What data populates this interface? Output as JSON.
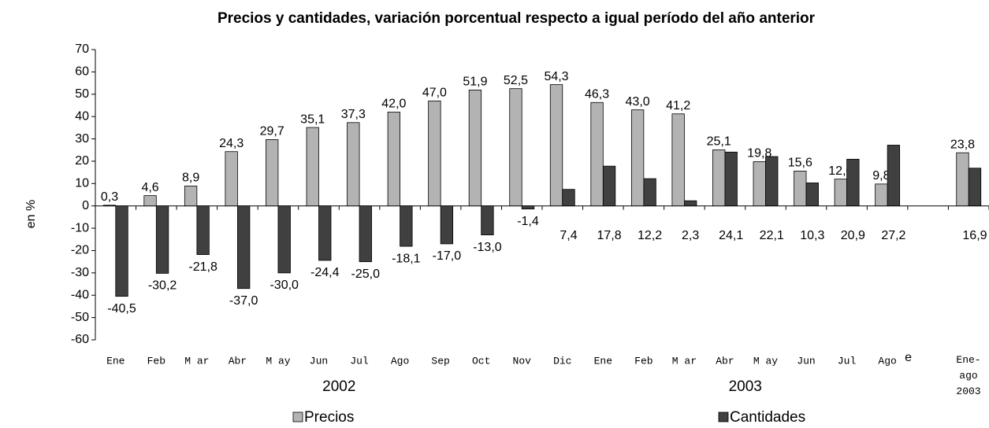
{
  "chart_data": {
    "type": "bar",
    "title": "Precios y cantidades, variación porcentual respecto a igual período del año anterior",
    "y_label": "en %",
    "categories": [
      "Ene",
      "Feb",
      "M ar",
      "Abr",
      "M ay",
      "Jun",
      "Jul",
      "Ago",
      "Sep",
      "Oct",
      "Nov",
      "Dic",
      "Ene",
      "Feb",
      "M ar",
      "Abr",
      "M ay",
      "Jun",
      "Jul",
      "Ago",
      null,
      "Ene-ago 2003"
    ],
    "groups": [
      "2002",
      "2003"
    ],
    "annotation": "e",
    "series": [
      {
        "name": "Precios",
        "color": "#b3b3b3",
        "values": [
          0.3,
          4.6,
          8.9,
          24.3,
          29.7,
          35.1,
          37.3,
          42.0,
          47.0,
          51.9,
          52.5,
          54.3,
          46.3,
          43.0,
          41.2,
          25.1,
          19.8,
          15.6,
          12.0,
          9.8,
          null,
          23.8
        ],
        "value_labels": [
          "0,3",
          "4,6",
          "8,9",
          "24,3",
          "29,7",
          "35,1",
          "37,3",
          "42,0",
          "47,0",
          "51,9",
          "52,5",
          "54,3",
          "46,3",
          "43,0",
          "41,2",
          "25,1",
          "19,8",
          "15,6",
          "12,0",
          "9,8",
          null,
          "23,8"
        ]
      },
      {
        "name": "Cantidades",
        "color": "#404040",
        "values": [
          -40.5,
          -30.2,
          -21.8,
          -37.0,
          -30.0,
          -24.4,
          -25.0,
          -18.1,
          -17.0,
          -13.0,
          -1.4,
          7.4,
          17.8,
          12.2,
          2.3,
          24.1,
          22.1,
          10.3,
          20.9,
          27.2,
          null,
          16.9
        ],
        "value_labels": [
          "-40,5",
          "-30,2",
          "-21,8",
          "-37,0",
          "-30,0",
          "-24,4",
          "-25,0",
          "-18,1",
          "-17,0",
          "-13,0",
          "-1,4",
          "7,4",
          "17,8",
          "12,2",
          "2,3",
          "24,1",
          "22,1",
          "10,3",
          "20,9",
          "27,2",
          null,
          "16,9"
        ]
      }
    ],
    "ylim": [
      -60,
      70
    ],
    "yticks": [
      -60,
      -50,
      -40,
      -30,
      -20,
      -10,
      0,
      10,
      20,
      30,
      40,
      50,
      60,
      70
    ],
    "legend": "bottom"
  }
}
